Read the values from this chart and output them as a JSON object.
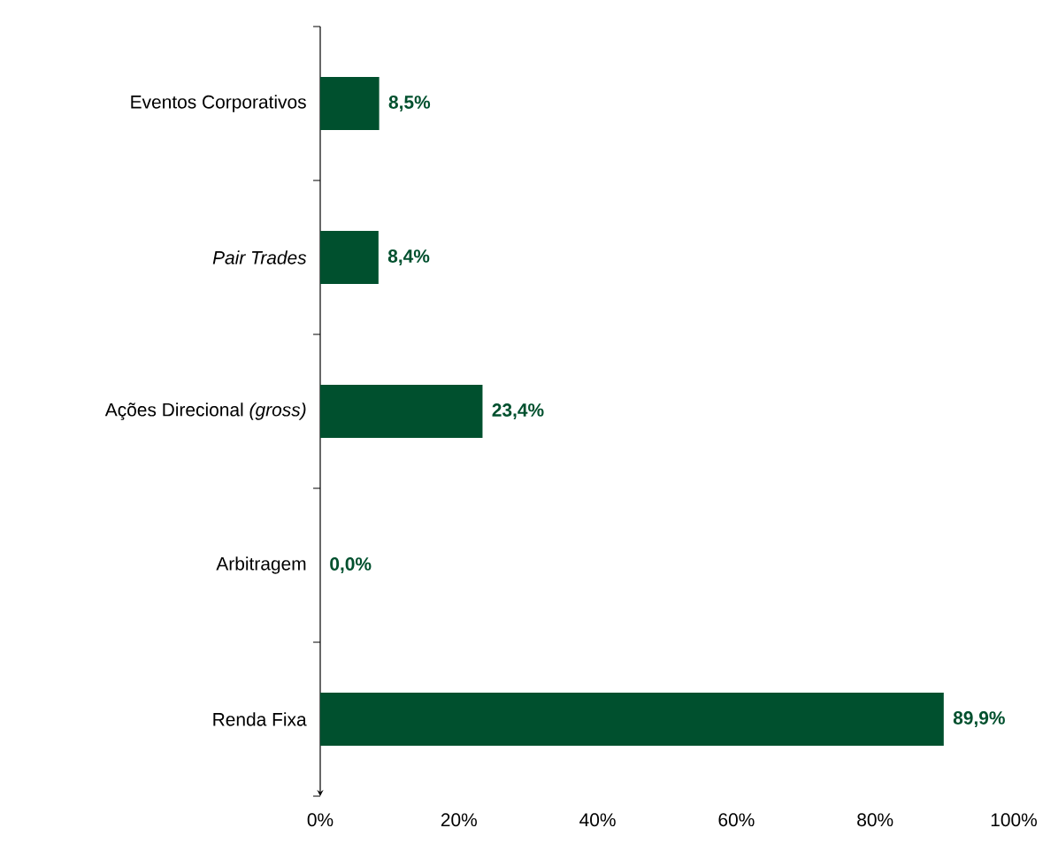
{
  "chart_data": {
    "type": "bar",
    "orientation": "horizontal",
    "categories": [
      "Eventos Corporativos",
      "*Pair Trades*",
      "Ações Direcional *(gross)*",
      "Arbitragem",
      "Renda Fixa"
    ],
    "values": [
      8.5,
      8.4,
      23.4,
      0.0,
      89.9
    ],
    "value_labels": [
      "8,5%",
      "8,4%",
      "23,4%",
      "0,0%",
      "89,9%"
    ],
    "color": "#00502e",
    "xlim": [
      0,
      100
    ],
    "xticks": [
      {
        "value": 0,
        "label": "0%"
      },
      {
        "value": 20,
        "label": "20%"
      },
      {
        "value": 40,
        "label": "40%"
      },
      {
        "value": 60,
        "label": "60%"
      },
      {
        "value": 80,
        "label": "80%"
      },
      {
        "value": 100,
        "label": "100%"
      }
    ],
    "grid": false
  }
}
